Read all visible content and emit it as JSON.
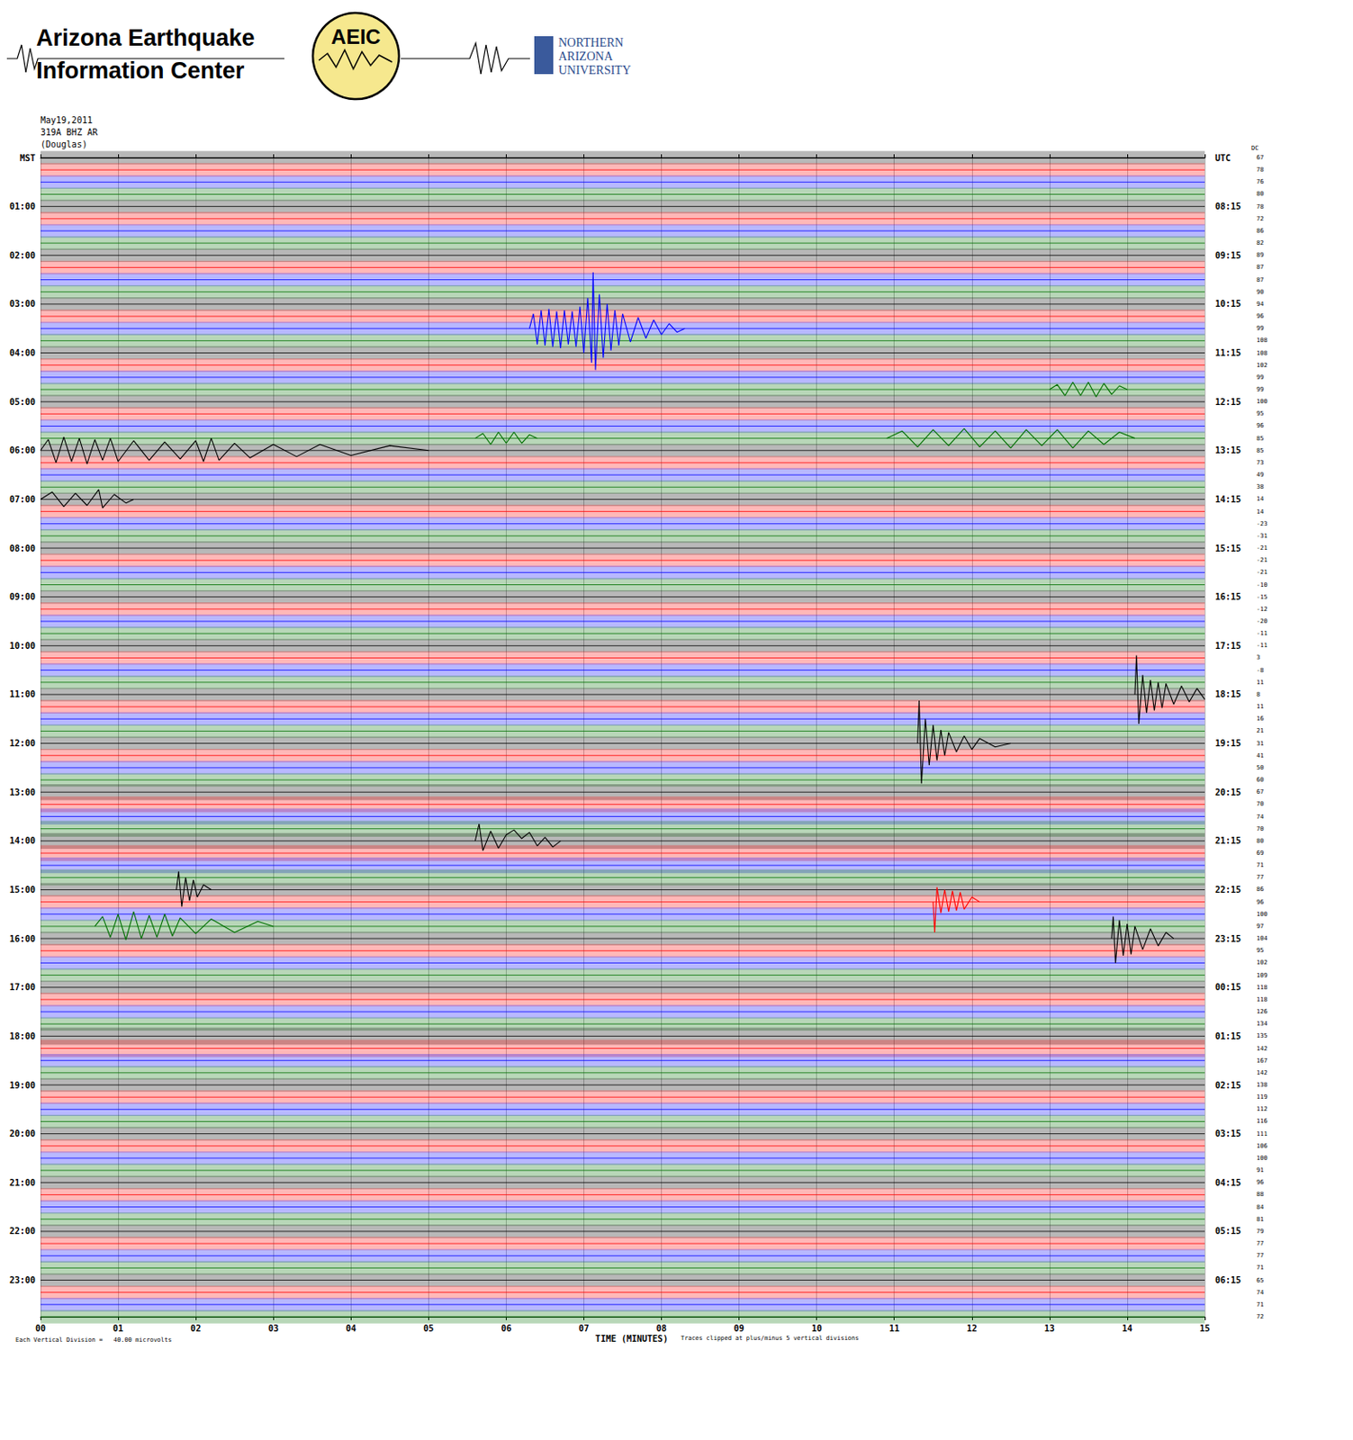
{
  "chart_data": {
    "type": "helicorder",
    "header": {
      "org_lines": [
        "Arizona Earthquake",
        "Information Center"
      ],
      "logo": "AEIC",
      "university_lines": [
        "NORTHERN",
        "ARIZONA",
        "UNIVERSITY"
      ]
    },
    "date": "May19,2011",
    "station": "319A BHZ AR",
    "site": "(Douglas)",
    "x_label": "TIME (MINUTES)",
    "scale_note": "Each Vertical Division =   40.00 microvolts",
    "clip_note": "Traces clipped at plus/minus 5 vertical divisions",
    "xlim": [
      0,
      15
    ],
    "xticks": [
      {
        "value": 0,
        "label": "00"
      },
      {
        "value": 1,
        "label": "01"
      },
      {
        "value": 2,
        "label": "02"
      },
      {
        "value": 3,
        "label": "03"
      },
      {
        "value": 4,
        "label": "04"
      },
      {
        "value": 5,
        "label": "05"
      },
      {
        "value": 6,
        "label": "06"
      },
      {
        "value": 7,
        "label": "07"
      },
      {
        "value": 8,
        "label": "08"
      },
      {
        "value": 9,
        "label": "09"
      },
      {
        "value": 10,
        "label": "10"
      },
      {
        "value": 11,
        "label": "11"
      },
      {
        "value": 12,
        "label": "12"
      },
      {
        "value": 13,
        "label": "13"
      },
      {
        "value": 14,
        "label": "14"
      },
      {
        "value": 15,
        "label": "15"
      }
    ],
    "ylim": [
      -5,
      5
    ],
    "grid": true,
    "left_labels": [
      "MST",
      "01:00",
      "02:00",
      "03:00",
      "04:00",
      "05:00",
      "06:00",
      "07:00",
      "08:00",
      "09:00",
      "10:00",
      "11:00",
      "12:00",
      "13:00",
      "14:00",
      "15:00",
      "16:00",
      "17:00",
      "18:00",
      "19:00",
      "20:00",
      "21:00",
      "22:00",
      "23:00"
    ],
    "right_labels": [
      "UTC",
      "08:15",
      "09:15",
      "10:15",
      "11:15",
      "12:15",
      "13:15",
      "14:15",
      "15:15",
      "16:15",
      "17:15",
      "18:15",
      "19:15",
      "20:15",
      "21:15",
      "22:15",
      "23:15",
      "00:15",
      "01:15",
      "02:15",
      "03:15",
      "04:15",
      "05:15",
      "06:15"
    ],
    "dc_label": "DC",
    "dc": [
      67,
      78,
      76,
      80,
      78,
      72,
      86,
      82,
      89,
      87,
      87,
      90,
      94,
      96,
      99,
      108,
      108,
      102,
      99,
      99,
      100,
      95,
      96,
      85,
      85,
      73,
      49,
      38,
      14,
      14,
      -23,
      -31,
      -21,
      -21,
      -21,
      -10,
      -15,
      -12,
      -20,
      -11,
      -11,
      3,
      -8,
      11,
      8,
      11,
      16,
      21,
      31,
      41,
      50,
      60,
      67,
      70,
      74,
      70,
      80,
      69,
      71,
      77,
      86,
      96,
      100,
      97,
      104,
      95,
      102,
      109,
      118,
      118,
      126,
      134,
      135,
      142,
      167,
      142,
      138,
      119,
      112,
      116,
      111,
      106,
      100,
      91,
      96,
      88,
      84,
      81,
      79,
      77,
      77,
      71,
      65,
      74,
      71,
      72
    ],
    "colors": [
      "#000000",
      "#ff0000",
      "#0000ff",
      "#007000"
    ],
    "noise_amplitude": [
      0.55,
      0.55,
      0.55,
      0.55,
      0.55,
      0.55,
      0.55,
      0.55,
      0.55,
      0.55,
      0.55,
      0.55,
      0.55,
      0.55,
      0.55,
      0.55,
      0.55,
      0.55,
      0.55,
      0.55,
      0.55,
      0.55,
      0.55,
      0.55,
      0.55,
      0.55,
      0.55,
      0.55,
      0.55,
      0.55,
      0.55,
      0.55,
      0.55,
      0.55,
      0.55,
      0.55,
      0.55,
      0.55,
      0.55,
      0.55,
      0.55,
      0.55,
      0.55,
      0.55,
      0.55,
      0.55,
      0.55,
      0.55,
      0.55,
      0.55,
      0.55,
      0.55,
      0.65,
      0.65,
      0.65,
      0.65,
      0.65,
      0.65,
      0.65,
      0.65,
      0.55,
      0.55,
      0.55,
      0.55,
      0.55,
      0.55,
      0.55,
      0.55,
      0.55,
      0.55,
      0.55,
      0.55,
      0.7,
      0.7,
      0.55,
      0.55,
      0.55,
      0.55,
      0.55,
      0.55,
      0.55,
      0.55,
      0.55,
      0.55,
      0.55,
      0.55,
      0.55,
      0.55,
      0.55,
      0.55,
      0.55,
      0.55,
      0.55,
      0.55,
      0.55,
      0.55
    ],
    "events": [
      {
        "row": 14,
        "points": [
          [
            6.3,
            0
          ],
          [
            6.35,
            1.2
          ],
          [
            6.4,
            -1.3
          ],
          [
            6.45,
            1.5
          ],
          [
            6.5,
            -1.4
          ],
          [
            6.55,
            1.6
          ],
          [
            6.6,
            -1.5
          ],
          [
            6.65,
            1.4
          ],
          [
            6.7,
            -1.6
          ],
          [
            6.75,
            1.5
          ],
          [
            6.8,
            -1.3
          ],
          [
            6.85,
            1.4
          ],
          [
            6.9,
            -1.5
          ],
          [
            6.95,
            1.8
          ],
          [
            7.0,
            -2.0
          ],
          [
            7.05,
            2.5
          ],
          [
            7.1,
            -2.8
          ],
          [
            7.12,
            4.6
          ],
          [
            7.15,
            -3.4
          ],
          [
            7.2,
            2.8
          ],
          [
            7.25,
            -2.4
          ],
          [
            7.3,
            2.0
          ],
          [
            7.35,
            -1.8
          ],
          [
            7.4,
            1.5
          ],
          [
            7.45,
            -1.4
          ],
          [
            7.5,
            1.2
          ],
          [
            7.6,
            -1.1
          ],
          [
            7.7,
            0.9
          ],
          [
            7.8,
            -0.8
          ],
          [
            7.9,
            0.7
          ],
          [
            8.0,
            -0.5
          ],
          [
            8.1,
            0.4
          ],
          [
            8.2,
            -0.3
          ],
          [
            8.3,
            0
          ]
        ]
      },
      {
        "row": 19,
        "points": [
          [
            13.0,
            0
          ],
          [
            13.1,
            0.4
          ],
          [
            13.2,
            -0.5
          ],
          [
            13.3,
            0.6
          ],
          [
            13.4,
            -0.5
          ],
          [
            13.5,
            0.6
          ],
          [
            13.6,
            -0.6
          ],
          [
            13.7,
            0.5
          ],
          [
            13.8,
            -0.4
          ],
          [
            13.9,
            0.3
          ],
          [
            14.0,
            0
          ]
        ]
      },
      {
        "row": 23,
        "points": [
          [
            5.6,
            0
          ],
          [
            5.7,
            0.4
          ],
          [
            5.8,
            -0.5
          ],
          [
            5.9,
            0.5
          ],
          [
            6.0,
            -0.4
          ],
          [
            6.1,
            0.5
          ],
          [
            6.2,
            -0.4
          ],
          [
            6.3,
            0.3
          ],
          [
            6.4,
            0
          ]
        ]
      },
      {
        "row": 23,
        "points": [
          [
            10.9,
            0
          ],
          [
            11.1,
            0.6
          ],
          [
            11.3,
            -0.7
          ],
          [
            11.5,
            0.7
          ],
          [
            11.7,
            -0.6
          ],
          [
            11.9,
            0.8
          ],
          [
            12.1,
            -0.7
          ],
          [
            12.3,
            0.6
          ],
          [
            12.5,
            -0.8
          ],
          [
            12.7,
            0.7
          ],
          [
            12.9,
            -0.6
          ],
          [
            13.1,
            0.7
          ],
          [
            13.3,
            -0.8
          ],
          [
            13.5,
            0.6
          ],
          [
            13.7,
            -0.5
          ],
          [
            13.9,
            0.5
          ],
          [
            14.1,
            0
          ]
        ]
      },
      {
        "row": 24,
        "points": [
          [
            0,
            0
          ],
          [
            0.1,
            0.9
          ],
          [
            0.2,
            -1.0
          ],
          [
            0.3,
            1.1
          ],
          [
            0.4,
            -0.9
          ],
          [
            0.5,
            1.0
          ],
          [
            0.6,
            -1.1
          ],
          [
            0.7,
            0.9
          ],
          [
            0.8,
            -0.8
          ],
          [
            0.9,
            1.0
          ],
          [
            1.0,
            -0.9
          ],
          [
            1.2,
            0.8
          ],
          [
            1.4,
            -0.8
          ],
          [
            1.6,
            0.7
          ],
          [
            1.8,
            -0.7
          ],
          [
            2.0,
            0.8
          ],
          [
            2.1,
            -0.9
          ],
          [
            2.2,
            1.0
          ],
          [
            2.3,
            -0.8
          ],
          [
            2.5,
            0.6
          ],
          [
            2.7,
            -0.6
          ],
          [
            3.0,
            0.5
          ],
          [
            3.3,
            -0.5
          ],
          [
            3.6,
            0.5
          ],
          [
            4.0,
            -0.4
          ],
          [
            4.5,
            0.4
          ],
          [
            5.0,
            0
          ]
        ]
      },
      {
        "row": 28,
        "points": [
          [
            0,
            0
          ],
          [
            0.15,
            0.6
          ],
          [
            0.3,
            -0.6
          ],
          [
            0.45,
            0.5
          ],
          [
            0.6,
            -0.5
          ],
          [
            0.75,
            0.8
          ],
          [
            0.8,
            -0.7
          ],
          [
            0.95,
            0.4
          ],
          [
            1.1,
            -0.3
          ],
          [
            1.2,
            0
          ]
        ]
      },
      {
        "row": 44,
        "points": [
          [
            14.1,
            0
          ],
          [
            14.12,
            3.2
          ],
          [
            14.15,
            -2.4
          ],
          [
            14.2,
            1.6
          ],
          [
            14.25,
            -1.5
          ],
          [
            14.3,
            1.2
          ],
          [
            14.35,
            -1.3
          ],
          [
            14.4,
            1.0
          ],
          [
            14.45,
            -1.1
          ],
          [
            14.5,
            0.9
          ],
          [
            14.6,
            -0.8
          ],
          [
            14.7,
            0.7
          ],
          [
            14.8,
            -0.6
          ],
          [
            14.9,
            0.5
          ],
          [
            15.0,
            -0.4
          ]
        ]
      },
      {
        "row": 48,
        "points": [
          [
            11.3,
            0
          ],
          [
            11.32,
            3.5
          ],
          [
            11.35,
            -3.3
          ],
          [
            11.4,
            2.0
          ],
          [
            11.45,
            -1.8
          ],
          [
            11.5,
            1.5
          ],
          [
            11.55,
            -1.4
          ],
          [
            11.6,
            1.1
          ],
          [
            11.65,
            -1.0
          ],
          [
            11.7,
            0.9
          ],
          [
            11.8,
            -0.7
          ],
          [
            11.9,
            0.6
          ],
          [
            12.0,
            -0.5
          ],
          [
            12.1,
            0.4
          ],
          [
            12.3,
            -0.3
          ],
          [
            12.5,
            0
          ]
        ]
      },
      {
        "row": 56,
        "points": [
          [
            5.6,
            0
          ],
          [
            5.65,
            1.4
          ],
          [
            5.7,
            -0.8
          ],
          [
            5.8,
            0.8
          ],
          [
            5.9,
            -0.6
          ],
          [
            6.0,
            0.5
          ],
          [
            6.1,
            0.9
          ],
          [
            6.2,
            0.2
          ],
          [
            6.3,
            0.7
          ],
          [
            6.4,
            -0.4
          ],
          [
            6.5,
            0.3
          ],
          [
            6.6,
            -0.5
          ],
          [
            6.7,
            0
          ]
        ]
      },
      {
        "row": 60,
        "points": [
          [
            1.75,
            0
          ],
          [
            1.78,
            1.5
          ],
          [
            1.82,
            -1.4
          ],
          [
            1.87,
            1.0
          ],
          [
            1.92,
            -0.9
          ],
          [
            1.97,
            0.8
          ],
          [
            2.02,
            -0.6
          ],
          [
            2.1,
            0.4
          ],
          [
            2.2,
            0
          ]
        ]
      },
      {
        "row": 61,
        "points": [
          [
            11.5,
            0
          ],
          [
            11.52,
            -2.5
          ],
          [
            11.55,
            1.2
          ],
          [
            11.6,
            -0.9
          ],
          [
            11.65,
            1.0
          ],
          [
            11.7,
            -0.8
          ],
          [
            11.75,
            0.9
          ],
          [
            11.8,
            -0.7
          ],
          [
            11.85,
            0.8
          ],
          [
            11.9,
            -0.6
          ],
          [
            12.0,
            0.4
          ],
          [
            12.1,
            0
          ]
        ]
      },
      {
        "row": 63,
        "points": [
          [
            0.7,
            0
          ],
          [
            0.8,
            0.8
          ],
          [
            0.9,
            -0.9
          ],
          [
            1.0,
            1.0
          ],
          [
            1.1,
            -1.1
          ],
          [
            1.2,
            1.2
          ],
          [
            1.3,
            -1.0
          ],
          [
            1.4,
            0.9
          ],
          [
            1.5,
            -0.9
          ],
          [
            1.6,
            1.0
          ],
          [
            1.7,
            -0.8
          ],
          [
            1.8,
            0.7
          ],
          [
            2.0,
            -0.6
          ],
          [
            2.2,
            0.6
          ],
          [
            2.5,
            -0.5
          ],
          [
            2.8,
            0.4
          ],
          [
            3.0,
            0
          ]
        ]
      },
      {
        "row": 64,
        "points": [
          [
            13.8,
            0
          ],
          [
            13.82,
            1.8
          ],
          [
            13.85,
            -2.0
          ],
          [
            13.9,
            1.5
          ],
          [
            13.95,
            -1.4
          ],
          [
            14.0,
            1.2
          ],
          [
            14.05,
            -1.3
          ],
          [
            14.1,
            1.0
          ],
          [
            14.2,
            -0.9
          ],
          [
            14.3,
            0.8
          ],
          [
            14.4,
            -0.6
          ],
          [
            14.5,
            0.5
          ],
          [
            14.6,
            0
          ]
        ]
      }
    ]
  }
}
